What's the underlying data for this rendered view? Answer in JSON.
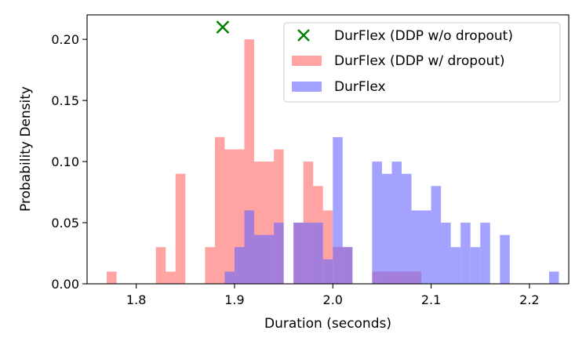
{
  "chart_data": {
    "type": "histogram",
    "xlabel": "Duration (seconds)",
    "ylabel": "Probability Density",
    "xlim": [
      1.75,
      2.24
    ],
    "ylim": [
      0.0,
      0.22
    ],
    "xticks": [
      1.8,
      1.9,
      2.0,
      2.1,
      2.2
    ],
    "xtick_labels": [
      "1.8",
      "1.9",
      "2.0",
      "2.1",
      "2.2"
    ],
    "yticks": [
      0.0,
      0.05,
      0.1,
      0.15,
      0.2
    ],
    "ytick_labels": [
      "0.00",
      "0.05",
      "0.10",
      "0.15",
      "0.20"
    ],
    "bin_width": 0.01,
    "legend_position": "top-right",
    "series": [
      {
        "name": "DurFlex (DDP w/ dropout)",
        "kind": "bars",
        "color": "#ff6666",
        "bin_starts": [
          1.77,
          1.82,
          1.83,
          1.84,
          1.87,
          1.88,
          1.89,
          1.9,
          1.91,
          1.92,
          1.93,
          1.94,
          1.96,
          1.97,
          1.98,
          1.99,
          2.0,
          2.01,
          2.04,
          2.05,
          2.06,
          2.07,
          2.08
        ],
        "values": [
          0.01,
          0.03,
          0.01,
          0.09,
          0.03,
          0.12,
          0.11,
          0.11,
          0.2,
          0.1,
          0.1,
          0.11,
          0.05,
          0.1,
          0.08,
          0.06,
          0.03,
          0.03,
          0.01,
          0.01,
          0.01,
          0.01,
          0.01
        ]
      },
      {
        "name": "DurFlex",
        "kind": "bars",
        "color": "#6666ff",
        "bin_starts": [
          1.89,
          1.9,
          1.91,
          1.92,
          1.93,
          1.94,
          1.96,
          1.97,
          1.98,
          1.99,
          2.0,
          2.01,
          2.04,
          2.05,
          2.06,
          2.07,
          2.08,
          2.09,
          2.1,
          2.11,
          2.12,
          2.13,
          2.14,
          2.15,
          2.17,
          2.22
        ],
        "values": [
          0.01,
          0.03,
          0.06,
          0.04,
          0.04,
          0.05,
          0.05,
          0.05,
          0.05,
          0.02,
          0.12,
          0.03,
          0.1,
          0.09,
          0.1,
          0.09,
          0.06,
          0.06,
          0.08,
          0.05,
          0.03,
          0.05,
          0.03,
          0.05,
          0.04,
          0.01
        ]
      },
      {
        "name": "DurFlex (DDP w/o dropout)",
        "kind": "marker",
        "marker": "x",
        "color": "#008000",
        "x": 1.888,
        "y": 0.21
      }
    ]
  }
}
